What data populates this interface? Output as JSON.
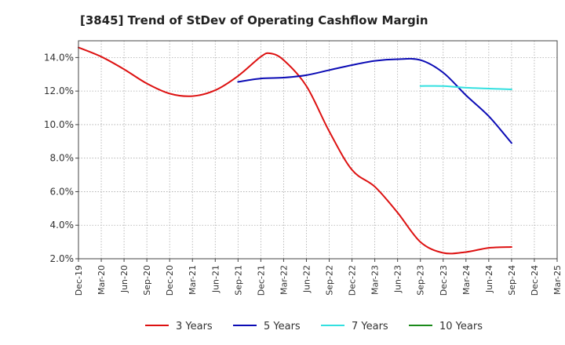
{
  "chart_data": {
    "type": "line",
    "title": "[3845]  Trend of StDev of Operating Cashflow Margin",
    "xlabel": "",
    "ylabel": "",
    "ylim": [
      2.0,
      15.0
    ],
    "y_ticks": [
      2.0,
      4.0,
      6.0,
      8.0,
      10.0,
      12.0,
      14.0
    ],
    "y_tick_labels": [
      "2.0%",
      "4.0%",
      "6.0%",
      "8.0%",
      "10.0%",
      "12.0%",
      "14.0%"
    ],
    "x_tick_labels": [
      "Dec-19",
      "Mar-20",
      "Jun-20",
      "Sep-20",
      "Dec-20",
      "Mar-21",
      "Jun-21",
      "Sep-21",
      "Dec-21",
      "Mar-22",
      "Jun-22",
      "Sep-22",
      "Dec-22",
      "Mar-23",
      "Jun-23",
      "Sep-23",
      "Dec-23",
      "Mar-24",
      "Jun-24",
      "Sep-24",
      "Dec-24",
      "Mar-25"
    ],
    "grid": true,
    "legend_position": "bottom",
    "series": [
      {
        "name": "3 Years",
        "color": "#dd1111",
        "points": [
          [
            0,
            14.6
          ],
          [
            1,
            14.05
          ],
          [
            2,
            13.3
          ],
          [
            3,
            12.45
          ],
          [
            4,
            11.85
          ],
          [
            5,
            11.7
          ],
          [
            6,
            12.05
          ],
          [
            7,
            12.9
          ],
          [
            8,
            14.05
          ],
          [
            8.4,
            14.25
          ],
          [
            9,
            13.85
          ],
          [
            10,
            12.3
          ],
          [
            11,
            9.6
          ],
          [
            12,
            7.3
          ],
          [
            13,
            6.3
          ],
          [
            14,
            4.75
          ],
          [
            15,
            3.0
          ],
          [
            16,
            2.35
          ],
          [
            17,
            2.4
          ],
          [
            18,
            2.65
          ],
          [
            19,
            2.7
          ]
        ]
      },
      {
        "name": "5 Years",
        "color": "#0b0bb5",
        "points": [
          [
            7,
            12.55
          ],
          [
            8,
            12.75
          ],
          [
            9,
            12.8
          ],
          [
            10,
            12.95
          ],
          [
            11,
            13.25
          ],
          [
            12,
            13.55
          ],
          [
            13,
            13.8
          ],
          [
            14,
            13.9
          ],
          [
            15,
            13.85
          ],
          [
            16,
            13.1
          ],
          [
            17,
            11.75
          ],
          [
            18,
            10.5
          ],
          [
            19,
            8.9
          ]
        ]
      },
      {
        "name": "7 Years",
        "color": "#33e0e0",
        "points": [
          [
            15,
            12.3
          ],
          [
            16,
            12.3
          ],
          [
            17,
            12.2
          ],
          [
            18,
            12.15
          ],
          [
            19,
            12.1
          ]
        ]
      },
      {
        "name": "10 Years",
        "color": "#1a8a1a",
        "points": []
      }
    ]
  }
}
